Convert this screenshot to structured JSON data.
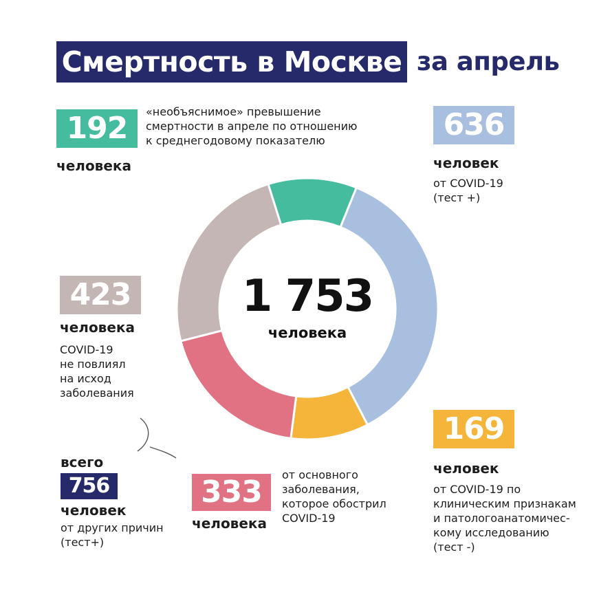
{
  "header": {
    "title": "Смертность в Москве",
    "subtitle": "за апрель"
  },
  "center": {
    "total": "1 753",
    "unit": "человека"
  },
  "callouts": {
    "unexplained": {
      "value": "192",
      "unit": "человека",
      "desc": [
        "«необъяснимое» превышение",
        "смертности в апреле по отношению",
        "к среднегодовому показателю"
      ]
    },
    "covid_test_positive": {
      "value": "636",
      "unit": "человек",
      "desc": [
        "от COVID-19",
        "(тест +)"
      ]
    },
    "covid_no_effect": {
      "value": "423",
      "unit": "человека",
      "desc": [
        "COVID-19",
        "не повлиял",
        "на исход",
        "заболевания"
      ]
    },
    "other_causes": {
      "prefix": "всего",
      "value": "756",
      "unit": "человек",
      "desc": [
        "от других причин",
        "(тест+)"
      ]
    },
    "covid_aggravated": {
      "value": "333",
      "unit": "человека",
      "desc": [
        "от основного",
        "заболевания,",
        "которое обострил",
        "COVID-19"
      ]
    },
    "covid_clinical": {
      "value": "169",
      "unit": "человек",
      "desc": [
        "от COVID-19 по",
        "клиническим признакам",
        "и патологоанатомичес-",
        "кому исследованию",
        "(тест -)"
      ]
    }
  },
  "chart_data": {
    "type": "pie",
    "title": "Смертность в Москве за апрель",
    "total": 1753,
    "slices": [
      {
        "label": "636 человек от COVID-19 (тест +)",
        "value": 636,
        "color": "#a9bfdf"
      },
      {
        "label": "169 человек от COVID-19 по клиническим признакам (тест -)",
        "value": 169,
        "color": "#f5b43a"
      },
      {
        "label": "333 человека от основного заболевания, которое обострил COVID-19",
        "value": 333,
        "color": "#e07283"
      },
      {
        "label": "423 человека COVID-19 не повлиял на исход заболевания",
        "value": 423,
        "color": "#c3b6b4"
      },
      {
        "label": "192 человека «необъяснимое» превышение смертности",
        "value": 192,
        "color": "#45bc9e"
      }
    ]
  },
  "colors": {
    "navy": "#262a6b",
    "green": "#45bc9e",
    "blue": "#a9bfdf",
    "taupe": "#c3b6b4",
    "pink": "#e07283",
    "orange": "#f5b43a"
  }
}
